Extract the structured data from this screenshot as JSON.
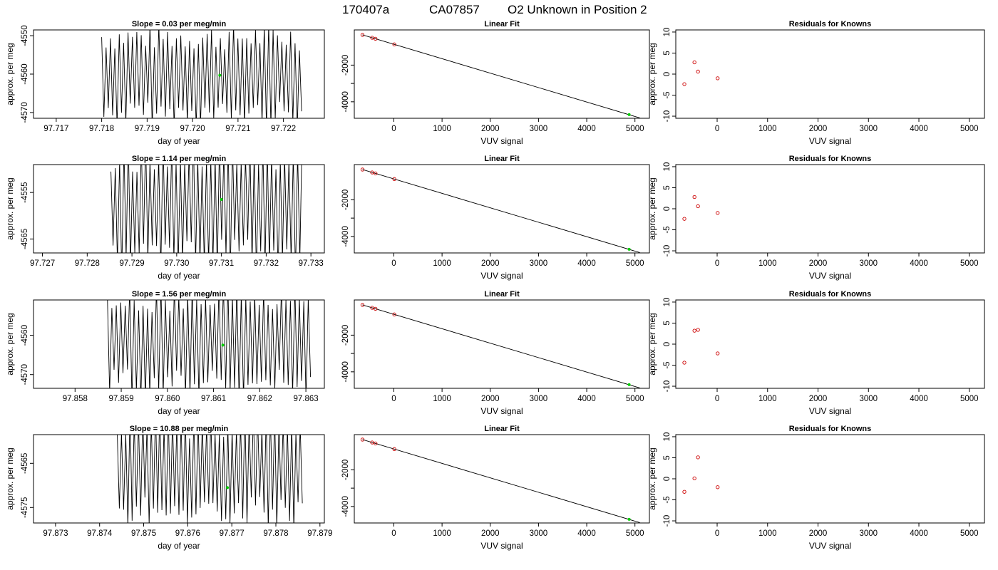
{
  "suptitle": {
    "run": "170407a",
    "tank": "CA07857",
    "desc": "O2 Unknown in Position  2"
  },
  "colors": {
    "trace": "#000000",
    "unknown_point": "#00cc00",
    "known_point": "#cc0000",
    "fit_line": "#000000"
  },
  "chart_data": [
    {
      "type": "line",
      "title": "Slope =  0.03  per meg/min",
      "xlabel": "day of year",
      "ylabel": "approx. per meg",
      "xlim": [
        97.7165,
        97.7229
      ],
      "ylim": [
        -4571.5,
        -4548.5
      ],
      "xticks": [
        97.717,
        97.718,
        97.719,
        97.72,
        97.721,
        97.722
      ],
      "yticks": [
        -4550,
        -4560,
        -4570
      ],
      "trace": {
        "start": 97.718,
        "end": 97.7224,
        "mean": -4560.5,
        "amplitude": 12,
        "period": 9.7e-05
      },
      "unknown_point": {
        "x": 97.7206,
        "y": -4560.3
      }
    },
    {
      "type": "line",
      "title": "Linear Fit",
      "xlabel": "VUV signal",
      "ylabel": "",
      "xlim": [
        -820,
        5300
      ],
      "ylim": [
        -4900,
        -80
      ],
      "xticks": [
        0,
        1000,
        2000,
        3000,
        4000,
        5000
      ],
      "yticks": [
        -2000,
        -3000,
        -4000
      ],
      "ytick_labels": [
        "-2000",
        "",
        "-4000"
      ],
      "fit_line": [
        [
          -650,
          -350
        ],
        [
          5100,
          -4880
        ]
      ],
      "known_points": [
        [
          -650,
          -350
        ],
        [
          -450,
          -510
        ],
        [
          -380,
          -560
        ],
        [
          10,
          -870
        ]
      ],
      "unknown_point": [
        4880,
        -4700
      ]
    },
    {
      "type": "scatter",
      "title": "Residuals for Knowns",
      "xlabel": "VUV signal",
      "ylabel": "approx. per meg",
      "xlim": [
        -820,
        5300
      ],
      "ylim": [
        -10.5,
        10.5
      ],
      "xticks": [
        0,
        1000,
        2000,
        3000,
        4000,
        5000
      ],
      "yticks": [
        10,
        5,
        0,
        -5,
        -10
      ],
      "points": [
        [
          -650,
          -2.4
        ],
        [
          -450,
          2.8
        ],
        [
          -380,
          0.6
        ],
        [
          10,
          -1.0
        ]
      ]
    },
    {
      "type": "line",
      "title": "Slope =  1.14  per meg/min",
      "xlabel": "day of year",
      "ylabel": "approx. per meg",
      "xlim": [
        97.7268,
        97.7333
      ],
      "ylim": [
        -4568,
        -4549
      ],
      "xticks": [
        97.727,
        97.728,
        97.729,
        97.73,
        97.731,
        97.732,
        97.733
      ],
      "yticks": [
        -4555,
        -4565
      ],
      "trace": {
        "start": 97.72853,
        "end": 97.7328,
        "mean": -4558,
        "amplitude": 13,
        "period": 9.7e-05
      },
      "unknown_point": {
        "x": 97.731,
        "y": -4556.5
      }
    },
    {
      "type": "line",
      "title": "Linear Fit",
      "xlabel": "VUV signal",
      "ylabel": "",
      "xlim": [
        -820,
        5300
      ],
      "ylim": [
        -4900,
        -80
      ],
      "xticks": [
        0,
        1000,
        2000,
        3000,
        4000,
        5000
      ],
      "yticks": [
        -2000,
        -3000,
        -4000
      ],
      "ytick_labels": [
        "-2000",
        "",
        "-4000"
      ],
      "fit_line": [
        [
          -650,
          -350
        ],
        [
          5100,
          -4880
        ]
      ],
      "known_points": [
        [
          -650,
          -350
        ],
        [
          -450,
          -510
        ],
        [
          -380,
          -560
        ],
        [
          10,
          -870
        ]
      ],
      "unknown_point": [
        4880,
        -4700
      ]
    },
    {
      "type": "scatter",
      "title": "Residuals for Knowns",
      "xlabel": "VUV signal",
      "ylabel": "approx. per meg",
      "xlim": [
        -820,
        5300
      ],
      "ylim": [
        -10.5,
        10.5
      ],
      "xticks": [
        0,
        1000,
        2000,
        3000,
        4000,
        5000
      ],
      "yticks": [
        10,
        5,
        0,
        -5,
        -10
      ],
      "points": [
        [
          -650,
          -2.4
        ],
        [
          -450,
          2.8
        ],
        [
          -380,
          0.6
        ],
        [
          10,
          -1.0
        ]
      ]
    },
    {
      "type": "line",
      "title": "Slope =  1.56  per meg/min",
      "xlabel": "day of year",
      "ylabel": "approx. per meg",
      "xlim": [
        97.8571,
        97.8634
      ],
      "ylim": [
        -4573.5,
        -4551
      ],
      "xticks": [
        97.858,
        97.859,
        97.86,
        97.861,
        97.862,
        97.863
      ],
      "yticks": [
        -4560,
        -4570
      ],
      "trace": {
        "start": 97.8587,
        "end": 97.8631,
        "mean": -4561.5,
        "amplitude": 13,
        "period": 9.7e-05
      },
      "unknown_point": {
        "x": 97.8612,
        "y": -4562.5
      }
    },
    {
      "type": "line",
      "title": "Linear Fit",
      "xlabel": "VUV signal",
      "ylabel": "",
      "xlim": [
        -820,
        5300
      ],
      "ylim": [
        -4900,
        -80
      ],
      "xticks": [
        0,
        1000,
        2000,
        3000,
        4000,
        5000
      ],
      "yticks": [
        -2000,
        -3000,
        -4000
      ],
      "ytick_labels": [
        "-2000",
        "",
        "-4000"
      ],
      "fit_line": [
        [
          -650,
          -350
        ],
        [
          5100,
          -4880
        ]
      ],
      "known_points": [
        [
          -650,
          -350
        ],
        [
          -450,
          -510
        ],
        [
          -380,
          -560
        ],
        [
          10,
          -870
        ]
      ],
      "unknown_point": [
        4880,
        -4700
      ]
    },
    {
      "type": "scatter",
      "title": "Residuals for Knowns",
      "xlabel": "VUV signal",
      "ylabel": "approx. per meg",
      "xlim": [
        -820,
        5300
      ],
      "ylim": [
        -10.5,
        10.5
      ],
      "xticks": [
        0,
        1000,
        2000,
        3000,
        4000,
        5000
      ],
      "yticks": [
        10,
        5,
        0,
        -5,
        -10
      ],
      "points": [
        [
          -650,
          -4.4
        ],
        [
          -450,
          3.2
        ],
        [
          -380,
          3.4
        ],
        [
          10,
          -2.2
        ]
      ]
    },
    {
      "type": "line",
      "title": "Slope =  10.88  per meg/min",
      "xlabel": "day of year",
      "ylabel": "approx. per meg",
      "xlim": [
        97.8725,
        97.8791
      ],
      "ylim": [
        -4578.5,
        -4558.5
      ],
      "xticks": [
        97.873,
        97.874,
        97.875,
        97.876,
        97.877,
        97.878,
        97.879
      ],
      "yticks": [
        -4565,
        -4575
      ],
      "trace": {
        "start": 97.8744,
        "end": 97.8786,
        "mean": -4566,
        "amplitude": 12,
        "period": 9.7e-05
      },
      "unknown_point": {
        "x": 97.8769,
        "y": -4570.5
      }
    },
    {
      "type": "line",
      "title": "Linear Fit",
      "xlabel": "VUV signal",
      "ylabel": "",
      "xlim": [
        -820,
        5300
      ],
      "ylim": [
        -4900,
        -80
      ],
      "xticks": [
        0,
        1000,
        2000,
        3000,
        4000,
        5000
      ],
      "yticks": [
        -2000,
        -3000,
        -4000
      ],
      "ytick_labels": [
        "-2000",
        "",
        "-4000"
      ],
      "fit_line": [
        [
          -650,
          -350
        ],
        [
          5100,
          -4880
        ]
      ],
      "known_points": [
        [
          -650,
          -350
        ],
        [
          -450,
          -510
        ],
        [
          -380,
          -560
        ],
        [
          10,
          -870
        ]
      ],
      "unknown_point": [
        4880,
        -4700
      ]
    },
    {
      "type": "scatter",
      "title": "Residuals for Knowns",
      "xlabel": "VUV signal",
      "ylabel": "approx. per meg",
      "xlim": [
        -820,
        5300
      ],
      "ylim": [
        -10.5,
        10.5
      ],
      "xticks": [
        0,
        1000,
        2000,
        3000,
        4000,
        5000
      ],
      "yticks": [
        10,
        5,
        0,
        -5,
        -10
      ],
      "points": [
        [
          -650,
          -3.1
        ],
        [
          -450,
          0.1
        ],
        [
          -380,
          5.1
        ],
        [
          10,
          -2.0
        ]
      ]
    }
  ]
}
